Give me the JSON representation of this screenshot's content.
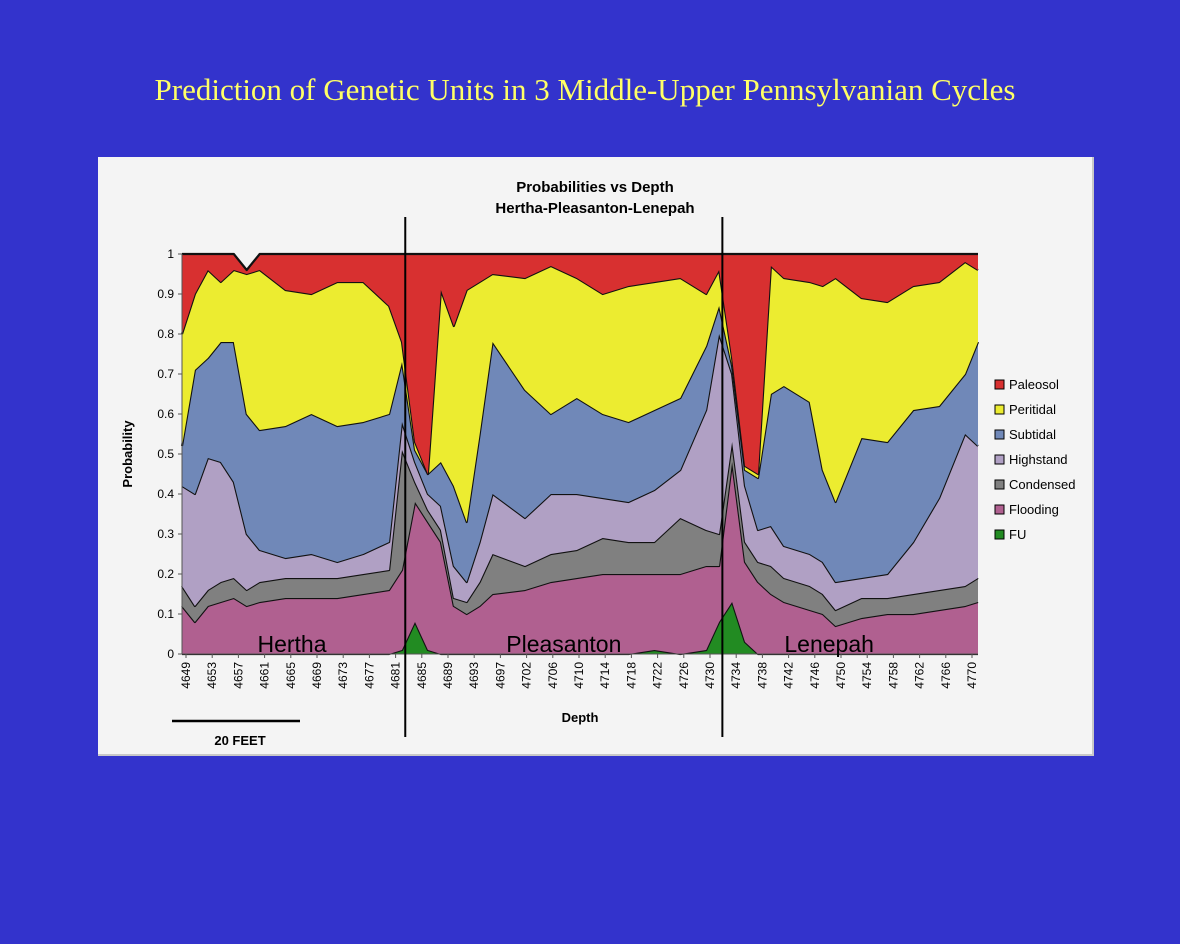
{
  "slide": {
    "title": "Prediction of Genetic Units in 3 Middle-Upper Pennsylvanian Cycles"
  },
  "scale_bar": {
    "label": "20 FEET"
  },
  "chart_data": {
    "type": "area",
    "stacked": true,
    "title": "Probabilities vs Depth",
    "subtitle": "Hertha-Pleasanton-Lenepah",
    "xlabel": "Depth",
    "ylabel": "Probability",
    "ylim": [
      0,
      1
    ],
    "yticks": [
      "0",
      "0.1",
      "0.2",
      "0.3",
      "0.4",
      "0.5",
      "0.6",
      "0.7",
      "0.8",
      "0.9",
      "1"
    ],
    "xticks": [
      "4649",
      "4653",
      "4657",
      "4661",
      "4665",
      "4669",
      "4673",
      "4677",
      "4681",
      "4685",
      "4689",
      "4693",
      "4697",
      "4702",
      "4706",
      "4710",
      "4714",
      "4718",
      "4722",
      "4726",
      "4730",
      "4734",
      "4738",
      "4742",
      "4746",
      "4750",
      "4754",
      "4758",
      "4762",
      "4766",
      "4770"
    ],
    "legend_position": "right",
    "depth": [
      4649,
      4651,
      4653,
      4655,
      4657,
      4659,
      4661,
      4665,
      4669,
      4673,
      4677,
      4681,
      4683,
      4685,
      4687,
      4689,
      4691,
      4693,
      4695,
      4697,
      4702,
      4706,
      4710,
      4714,
      4718,
      4722,
      4726,
      4730,
      4732,
      4734,
      4736,
      4738,
      4740,
      4742,
      4746,
      4748,
      4750,
      4754,
      4758,
      4762,
      4766,
      4770,
      4772
    ],
    "series": [
      {
        "name": "FU",
        "color": "#228b22",
        "values": [
          0,
          0,
          0,
          0,
          0,
          0,
          0,
          0,
          0,
          0,
          0,
          0,
          0.01,
          0.08,
          0.01,
          0,
          0,
          0,
          0,
          0,
          0,
          0,
          0,
          0,
          0,
          0.01,
          0,
          0.01,
          0.08,
          0.13,
          0.03,
          0,
          0,
          0,
          0,
          0,
          0,
          0,
          0,
          0,
          0,
          0,
          0
        ]
      },
      {
        "name": "Flooding",
        "color": "#b06090",
        "values": [
          0.12,
          0.08,
          0.12,
          0.13,
          0.14,
          0.12,
          0.13,
          0.14,
          0.14,
          0.14,
          0.15,
          0.16,
          0.2,
          0.3,
          0.32,
          0.28,
          0.12,
          0.1,
          0.12,
          0.15,
          0.16,
          0.18,
          0.19,
          0.2,
          0.2,
          0.19,
          0.2,
          0.21,
          0.14,
          0.35,
          0.2,
          0.18,
          0.15,
          0.13,
          0.11,
          0.1,
          0.07,
          0.09,
          0.1,
          0.1,
          0.11,
          0.12,
          0.13
        ]
      },
      {
        "name": "Condensed",
        "color": "#808080",
        "values": [
          0.05,
          0.04,
          0.04,
          0.05,
          0.05,
          0.04,
          0.05,
          0.05,
          0.05,
          0.05,
          0.05,
          0.05,
          0.3,
          0.05,
          0.03,
          0.03,
          0.02,
          0.03,
          0.06,
          0.1,
          0.06,
          0.07,
          0.07,
          0.09,
          0.08,
          0.08,
          0.14,
          0.09,
          0.08,
          0.05,
          0.05,
          0.05,
          0.07,
          0.06,
          0.06,
          0.05,
          0.04,
          0.05,
          0.04,
          0.05,
          0.05,
          0.05,
          0.06
        ]
      },
      {
        "name": "Highstand",
        "color": "#b0a0c4",
        "values": [
          0.25,
          0.28,
          0.33,
          0.3,
          0.24,
          0.14,
          0.08,
          0.05,
          0.06,
          0.04,
          0.05,
          0.07,
          0.07,
          0.05,
          0.04,
          0.06,
          0.08,
          0.05,
          0.1,
          0.15,
          0.12,
          0.15,
          0.14,
          0.1,
          0.1,
          0.13,
          0.12,
          0.3,
          0.5,
          0.17,
          0.14,
          0.08,
          0.1,
          0.08,
          0.08,
          0.08,
          0.07,
          0.05,
          0.06,
          0.13,
          0.23,
          0.38,
          0.33
        ]
      },
      {
        "name": "Subtidal",
        "color": "#7088b8",
        "values": [
          0.1,
          0.31,
          0.25,
          0.3,
          0.35,
          0.3,
          0.3,
          0.33,
          0.35,
          0.34,
          0.33,
          0.32,
          0.15,
          0.03,
          0.05,
          0.11,
          0.2,
          0.15,
          0.27,
          0.38,
          0.32,
          0.2,
          0.24,
          0.21,
          0.2,
          0.2,
          0.18,
          0.16,
          0.07,
          0.02,
          0.04,
          0.13,
          0.33,
          0.4,
          0.38,
          0.23,
          0.2,
          0.35,
          0.33,
          0.33,
          0.23,
          0.15,
          0.26
        ]
      },
      {
        "name": "Peritidal",
        "color": "#ecec30",
        "values": [
          0.28,
          0.19,
          0.22,
          0.15,
          0.18,
          0.35,
          0.4,
          0.34,
          0.3,
          0.36,
          0.35,
          0.27,
          0.05,
          0.02,
          0,
          0.43,
          0.4,
          0.58,
          0.38,
          0.17,
          0.28,
          0.37,
          0.3,
          0.3,
          0.34,
          0.32,
          0.3,
          0.13,
          0.09,
          0.02,
          0.01,
          0.01,
          0.32,
          0.27,
          0.3,
          0.46,
          0.56,
          0.35,
          0.35,
          0.31,
          0.31,
          0.28,
          0.18
        ]
      },
      {
        "name": "Paleosol",
        "color": "#d83030",
        "values": [
          0.2,
          0.1,
          0.04,
          0.07,
          0.04,
          0.01,
          0.04,
          0.09,
          0.1,
          0.07,
          0.07,
          0.13,
          0.22,
          0.47,
          0.55,
          0.09,
          0.18,
          0.09,
          0.07,
          0.05,
          0.06,
          0.03,
          0.06,
          0.1,
          0.08,
          0.07,
          0.06,
          0.1,
          0.04,
          0.26,
          0.53,
          0.55,
          0.03,
          0.06,
          0.07,
          0.08,
          0.06,
          0.11,
          0.12,
          0.08,
          0.07,
          0.02,
          0.04
        ]
      }
    ],
    "annotations": {
      "units": [
        {
          "label": "Hertha",
          "depth": 4666
        },
        {
          "label": "Pleasanton",
          "depth": 4708
        },
        {
          "label": "Lenepah",
          "depth": 4749
        }
      ],
      "boundaries": [
        4683.5,
        4732.5
      ]
    }
  }
}
